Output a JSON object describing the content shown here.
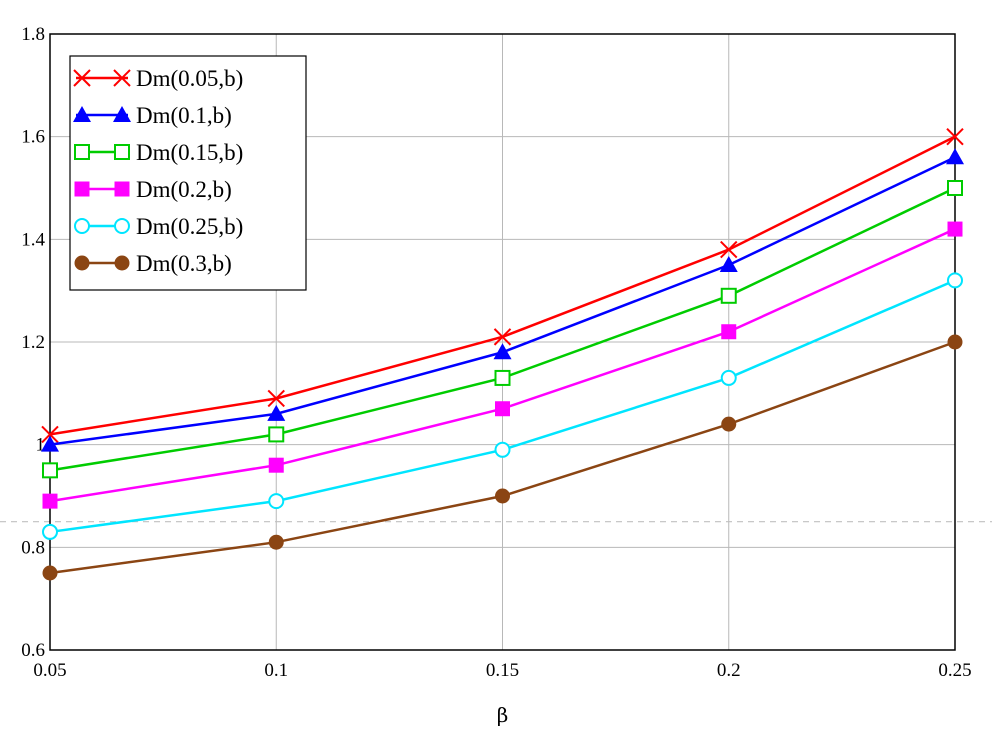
{
  "chart_data": {
    "type": "line",
    "title": "",
    "xlabel": "β",
    "ylabel": "",
    "x": [
      0.05,
      0.1,
      0.15,
      0.2,
      0.25
    ],
    "xlim": [
      0.05,
      0.25
    ],
    "ylim": [
      0.6,
      1.8
    ],
    "xticks": [
      "0.05",
      "0.1",
      "0.15",
      "0.2",
      "0.25"
    ],
    "yticks": [
      "0.6",
      "0.8",
      "1",
      "1.2",
      "1.4",
      "1.6",
      "1.8"
    ],
    "xtick_values": [
      0.05,
      0.1,
      0.15,
      0.2,
      0.25
    ],
    "ytick_values": [
      0.6,
      0.8,
      1.0,
      1.2,
      1.4,
      1.6,
      1.8
    ],
    "grid": true,
    "legend_position": "top-left",
    "reference_line": {
      "y": 0.85,
      "style": "dashed",
      "color": "#c0c0c0"
    },
    "series": [
      {
        "name": "Dm(0.05,b)",
        "color": "#ff0000",
        "marker": "x",
        "values": [
          1.02,
          1.09,
          1.21,
          1.38,
          1.6
        ]
      },
      {
        "name": "Dm(0.1,b)",
        "color": "#0000ff",
        "marker": "triangle",
        "values": [
          1.0,
          1.06,
          1.18,
          1.35,
          1.56
        ]
      },
      {
        "name": "Dm(0.15,b)",
        "color": "#00cc00",
        "marker": "square-open",
        "values": [
          0.95,
          1.02,
          1.13,
          1.29,
          1.5
        ]
      },
      {
        "name": "Dm(0.2,b)",
        "color": "#ff00ff",
        "marker": "square",
        "values": [
          0.89,
          0.96,
          1.07,
          1.22,
          1.42
        ]
      },
      {
        "name": "Dm(0.25,b)",
        "color": "#00e5ff",
        "marker": "circle-open",
        "values": [
          0.83,
          0.89,
          0.99,
          1.13,
          1.32
        ]
      },
      {
        "name": "Dm(0.3,b)",
        "color": "#8b4513",
        "marker": "circle",
        "values": [
          0.75,
          0.81,
          0.9,
          1.04,
          1.2
        ]
      }
    ]
  }
}
